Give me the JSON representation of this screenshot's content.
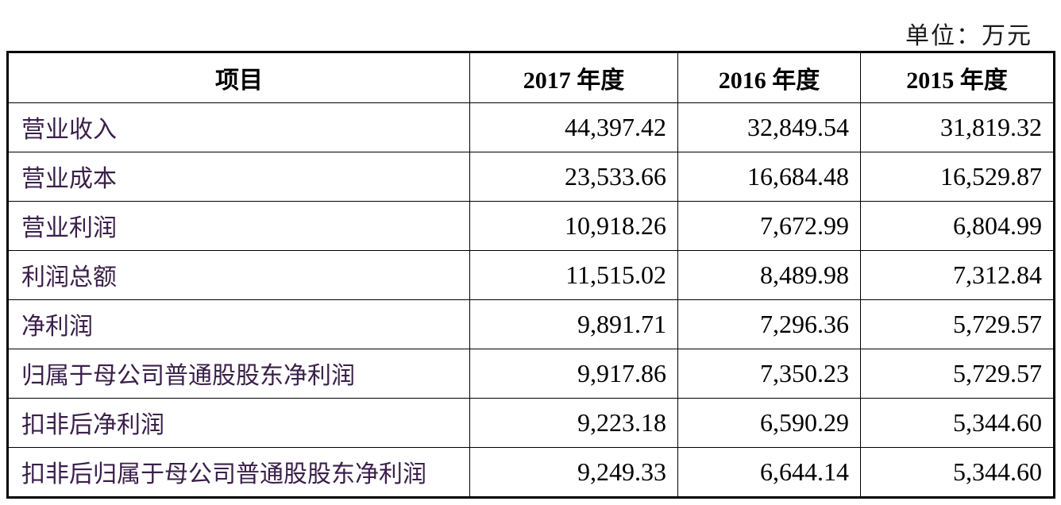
{
  "unit_label": "单位：万元",
  "table": {
    "headers": [
      "项目",
      "2017 年度",
      "2016 年度",
      "2015 年度"
    ],
    "rows": [
      {
        "item": "营业收入",
        "values": [
          "44,397.42",
          "32,849.54",
          "31,819.32"
        ]
      },
      {
        "item": "营业成本",
        "values": [
          "23,533.66",
          "16,684.48",
          "16,529.87"
        ]
      },
      {
        "item": "营业利润",
        "values": [
          "10,918.26",
          "7,672.99",
          "6,804.99"
        ]
      },
      {
        "item": "利润总额",
        "values": [
          "11,515.02",
          "8,489.98",
          "7,312.84"
        ]
      },
      {
        "item": "净利润",
        "values": [
          "9,891.71",
          "7,296.36",
          "5,729.57"
        ]
      },
      {
        "item": "归属于母公司普通股股东净利润",
        "values": [
          "9,917.86",
          "7,350.23",
          "5,729.57"
        ]
      },
      {
        "item": "扣非后净利润",
        "values": [
          "9,223.18",
          "6,590.29",
          "5,344.60"
        ]
      },
      {
        "item": "扣非后归属于母公司普通股股东净利润",
        "values": [
          "9,249.33",
          "6,644.14",
          "5,344.60"
        ]
      }
    ]
  }
}
